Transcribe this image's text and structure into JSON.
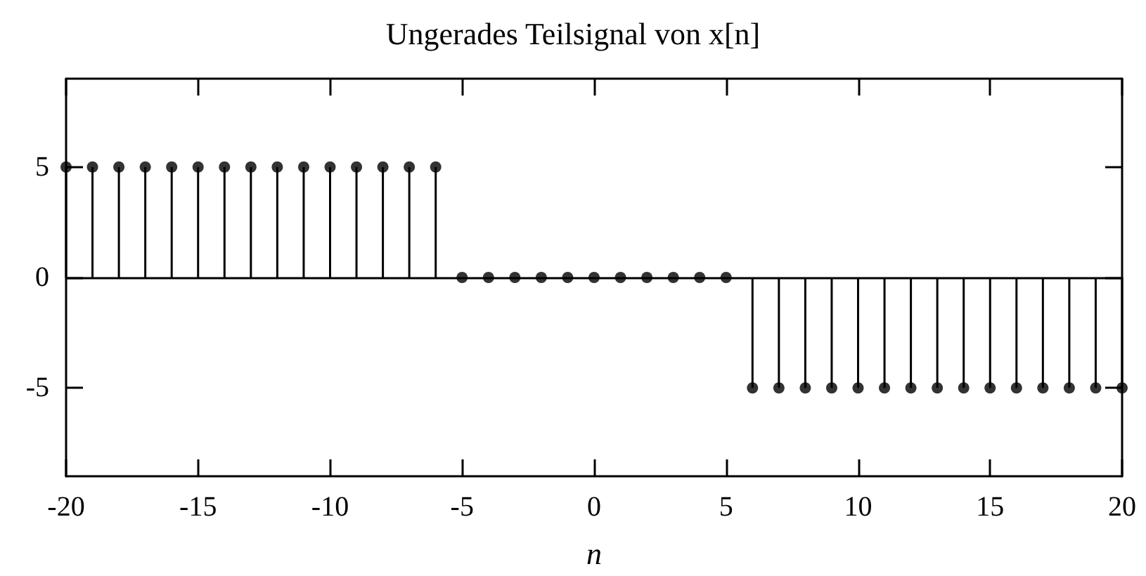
{
  "chart_data": {
    "type": "lollipop",
    "title": "Ungerades Teilsignal von x[n]",
    "xlabel": "n",
    "x": [
      -20,
      -19,
      -18,
      -17,
      -16,
      -15,
      -14,
      -13,
      -12,
      -11,
      -10,
      -9,
      -8,
      -7,
      -6,
      -5,
      -4,
      -3,
      -2,
      -1,
      0,
      1,
      2,
      3,
      4,
      5,
      6,
      7,
      8,
      9,
      10,
      11,
      12,
      13,
      14,
      15,
      16,
      17,
      18,
      19,
      20
    ],
    "values": [
      5,
      5,
      5,
      5,
      5,
      5,
      5,
      5,
      5,
      5,
      5,
      5,
      5,
      5,
      5,
      0,
      0,
      0,
      0,
      0,
      0,
      0,
      0,
      0,
      0,
      0,
      -5,
      -5,
      -5,
      -5,
      -5,
      -5,
      -5,
      -5,
      -5,
      -5,
      -5,
      -5,
      -5,
      -5,
      -5
    ],
    "color": "#000000",
    "marker": "circle",
    "xlim": [
      -20,
      20
    ],
    "xticks": [
      -20,
      -15,
      -10,
      -5,
      0,
      5,
      10,
      15,
      20
    ],
    "ylim": [
      -9,
      9
    ],
    "yticks": [
      -5,
      0,
      5
    ]
  }
}
